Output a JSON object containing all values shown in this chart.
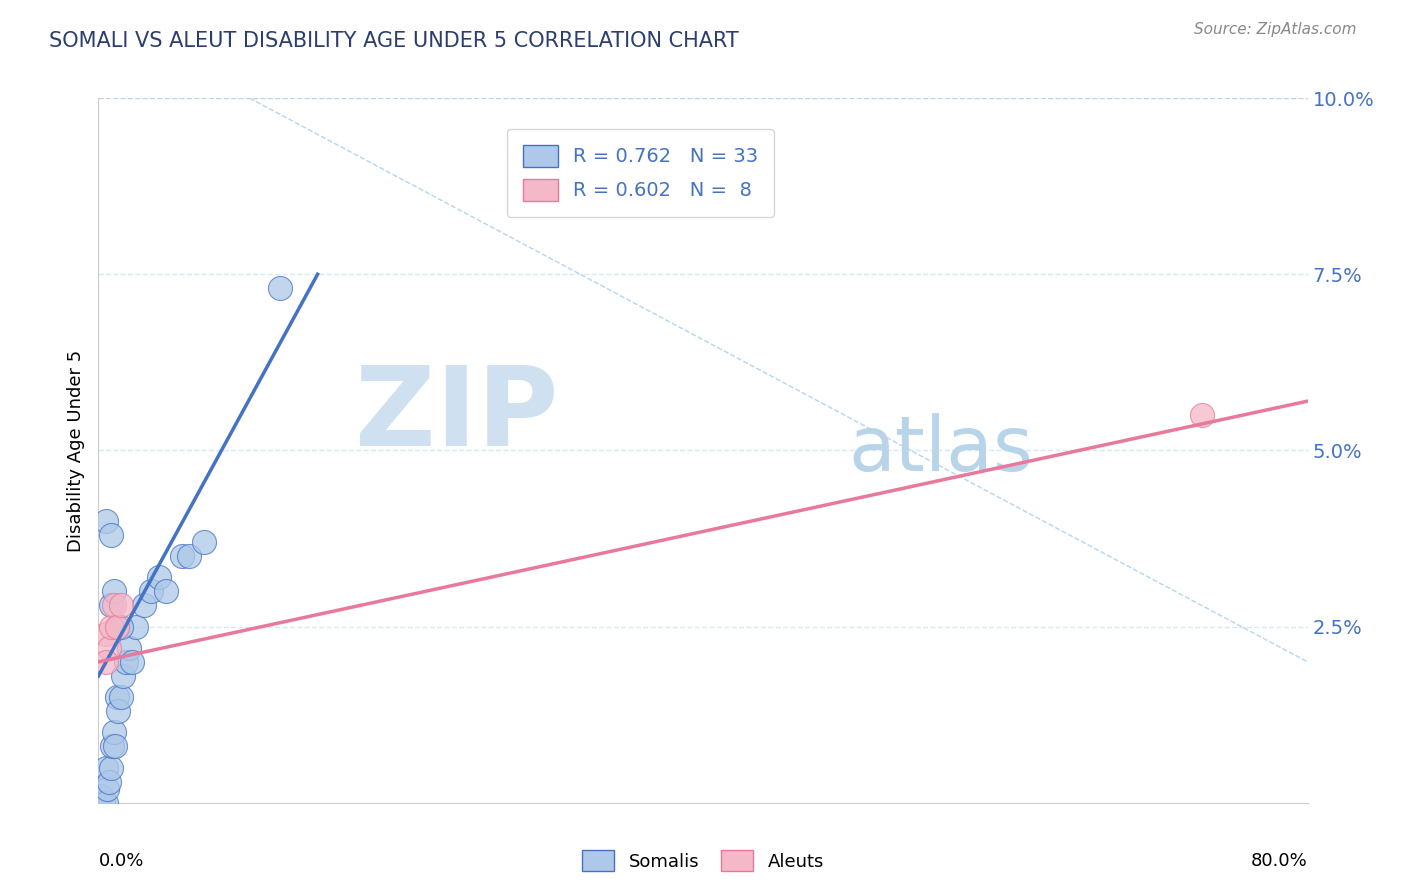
{
  "title": "SOMALI VS ALEUT DISABILITY AGE UNDER 5 CORRELATION CHART",
  "source_text": "Source: ZipAtlas.com",
  "ylabel": "Disability Age Under 5",
  "xmin": 0.0,
  "xmax": 0.8,
  "ymin": 0.0,
  "ymax": 0.1,
  "somali_R": 0.762,
  "somali_N": 33,
  "aleut_R": 0.602,
  "aleut_N": 8,
  "somali_color": "#adc8e8",
  "aleut_color": "#f4b8c8",
  "somali_line_color": "#4472c4",
  "aleut_line_color": "#e8799a",
  "diagonal_color": "#b8d4ee",
  "background_color": "#ffffff",
  "grid_color": "#d8e8f4",
  "watermark_zip": "ZIP",
  "watermark_atlas": "atlas",
  "watermark_color_zip": "#c8dff0",
  "watermark_color_atlas": "#b0cce0",
  "somali_points": [
    [
      0.001,
      0.001
    ],
    [
      0.002,
      0.001
    ],
    [
      0.003,
      0.0
    ],
    [
      0.005,
      0.0
    ],
    [
      0.005,
      0.005
    ],
    [
      0.006,
      0.002
    ],
    [
      0.007,
      0.003
    ],
    [
      0.008,
      0.005
    ],
    [
      0.009,
      0.008
    ],
    [
      0.01,
      0.01
    ],
    [
      0.011,
      0.008
    ],
    [
      0.012,
      0.015
    ],
    [
      0.013,
      0.013
    ],
    [
      0.015,
      0.015
    ],
    [
      0.016,
      0.018
    ],
    [
      0.018,
      0.02
    ],
    [
      0.02,
      0.022
    ],
    [
      0.022,
      0.02
    ],
    [
      0.025,
      0.025
    ],
    [
      0.03,
      0.028
    ],
    [
      0.035,
      0.03
    ],
    [
      0.04,
      0.032
    ],
    [
      0.045,
      0.03
    ],
    [
      0.055,
      0.035
    ],
    [
      0.008,
      0.028
    ],
    [
      0.01,
      0.03
    ],
    [
      0.012,
      0.025
    ],
    [
      0.015,
      0.025
    ],
    [
      0.005,
      0.04
    ],
    [
      0.008,
      0.038
    ],
    [
      0.12,
      0.073
    ],
    [
      0.06,
      0.035
    ],
    [
      0.07,
      0.037
    ]
  ],
  "aleut_points": [
    [
      0.005,
      0.024
    ],
    [
      0.007,
      0.022
    ],
    [
      0.008,
      0.025
    ],
    [
      0.01,
      0.028
    ],
    [
      0.012,
      0.025
    ],
    [
      0.015,
      0.028
    ],
    [
      0.005,
      0.02
    ],
    [
      0.73,
      0.055
    ]
  ],
  "somali_line": {
    "x0": 0.0,
    "y0": 0.018,
    "x1": 0.145,
    "y1": 0.075
  },
  "aleut_line": {
    "x0": 0.0,
    "y0": 0.02,
    "x1": 0.8,
    "y1": 0.057
  },
  "diagonal_line": {
    "x0": 0.0,
    "y0": 0.1,
    "x1": 0.8,
    "y1": 0.1
  }
}
